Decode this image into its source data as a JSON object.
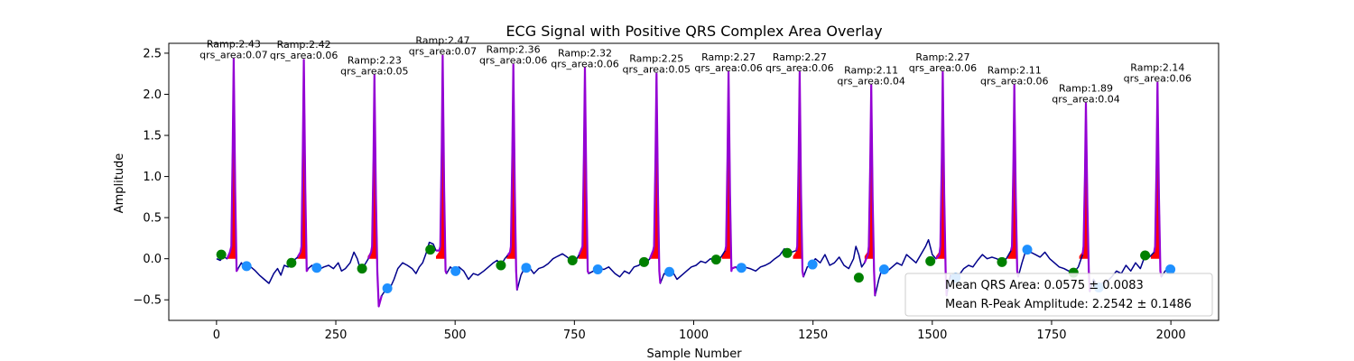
{
  "chart_data": {
    "type": "line",
    "title": "ECG Signal with Positive QRS Complex Area Overlay",
    "xlabel": "Sample Number",
    "ylabel": "Amplitude",
    "xlim": [
      -100,
      2100
    ],
    "ylim": [
      -0.75,
      2.62
    ],
    "xticks": [
      0,
      250,
      500,
      750,
      1000,
      1250,
      1500,
      1750,
      2000
    ],
    "yticks": [
      -0.5,
      0.0,
      0.5,
      1.0,
      1.5,
      2.0,
      2.5
    ],
    "xtick_labels": [
      "0",
      "250",
      "500",
      "750",
      "1000",
      "1250",
      "1500",
      "1750",
      "2000"
    ],
    "ytick_labels": [
      "−0.5",
      "0.0",
      "0.5",
      "1.0",
      "1.5",
      "2.0",
      "2.5"
    ],
    "grid": false,
    "colors": {
      "signal": "#00008b",
      "qrs_segment": "#9400d3",
      "qrs_area": "#ff0000",
      "onset_marker": "#008000",
      "offset_marker": "#1e90ff"
    },
    "beats": [
      {
        "r_x": 36,
        "r_amp": 2.43,
        "qrs_area": 0.07,
        "onset_x": 10,
        "onset_y": 0.05,
        "offset_x": 63,
        "offset_y": -0.09
      },
      {
        "r_x": 183,
        "r_amp": 2.42,
        "qrs_area": 0.06,
        "onset_x": 157,
        "onset_y": -0.05,
        "offset_x": 210,
        "offset_y": -0.11
      },
      {
        "r_x": 331,
        "r_amp": 2.23,
        "qrs_area": 0.05,
        "onset_x": 305,
        "onset_y": -0.12,
        "offset_x": 358,
        "offset_y": -0.36
      },
      {
        "r_x": 474,
        "r_amp": 2.47,
        "qrs_area": 0.07,
        "onset_x": 448,
        "onset_y": 0.11,
        "offset_x": 501,
        "offset_y": -0.15
      },
      {
        "r_x": 622,
        "r_amp": 2.36,
        "qrs_area": 0.06,
        "onset_x": 596,
        "onset_y": -0.08,
        "offset_x": 649,
        "offset_y": -0.11
      },
      {
        "r_x": 772,
        "r_amp": 2.32,
        "qrs_area": 0.06,
        "onset_x": 746,
        "onset_y": -0.02,
        "offset_x": 799,
        "offset_y": -0.13
      },
      {
        "r_x": 922,
        "r_amp": 2.25,
        "qrs_area": 0.05,
        "onset_x": 896,
        "onset_y": -0.04,
        "offset_x": 949,
        "offset_y": -0.16
      },
      {
        "r_x": 1073,
        "r_amp": 2.27,
        "qrs_area": 0.06,
        "onset_x": 1047,
        "onset_y": -0.01,
        "offset_x": 1100,
        "offset_y": -0.11
      },
      {
        "r_x": 1222,
        "r_amp": 2.27,
        "qrs_area": 0.06,
        "onset_x": 1196,
        "onset_y": 0.07,
        "offset_x": 1249,
        "offset_y": -0.07
      },
      {
        "r_x": 1372,
        "r_amp": 2.11,
        "qrs_area": 0.04,
        "onset_x": 1346,
        "onset_y": -0.23,
        "offset_x": 1399,
        "offset_y": -0.13
      },
      {
        "r_x": 1522,
        "r_amp": 2.27,
        "qrs_area": 0.06,
        "onset_x": 1496,
        "onset_y": -0.03,
        "offset_x": 1549,
        "offset_y": -0.23
      },
      {
        "r_x": 1672,
        "r_amp": 2.11,
        "qrs_area": 0.06,
        "onset_x": 1646,
        "onset_y": -0.04,
        "offset_x": 1699,
        "offset_y": 0.11
      },
      {
        "r_x": 1822,
        "r_amp": 1.89,
        "qrs_area": 0.04,
        "onset_x": 1796,
        "onset_y": -0.17,
        "offset_x": 1849,
        "offset_y": -0.35
      },
      {
        "r_x": 1972,
        "r_amp": 2.14,
        "qrs_area": 0.06,
        "onset_x": 1946,
        "onset_y": 0.04,
        "offset_x": 1999,
        "offset_y": -0.13
      }
    ],
    "baseline_points": [
      [
        0,
        0.0
      ],
      [
        8,
        -0.02
      ],
      [
        14,
        0.03
      ],
      [
        22,
        0.0
      ],
      [
        28,
        0.08
      ],
      [
        45,
        -0.12
      ],
      [
        52,
        -0.05
      ],
      [
        58,
        -0.1
      ],
      [
        70,
        -0.09
      ],
      [
        80,
        -0.14
      ],
      [
        90,
        -0.2
      ],
      [
        100,
        -0.25
      ],
      [
        110,
        -0.3
      ],
      [
        120,
        -0.18
      ],
      [
        128,
        -0.12
      ],
      [
        135,
        -0.2
      ],
      [
        142,
        -0.08
      ],
      [
        150,
        -0.1
      ],
      [
        160,
        -0.03
      ],
      [
        170,
        0.02
      ],
      [
        176,
        0.08
      ],
      [
        192,
        -0.12
      ],
      [
        200,
        -0.08
      ],
      [
        215,
        -0.13
      ],
      [
        225,
        -0.1
      ],
      [
        235,
        -0.08
      ],
      [
        245,
        -0.12
      ],
      [
        255,
        -0.05
      ],
      [
        262,
        -0.15
      ],
      [
        270,
        -0.12
      ],
      [
        280,
        -0.05
      ],
      [
        288,
        0.08
      ],
      [
        295,
        0.0
      ],
      [
        300,
        -0.1
      ],
      [
        310,
        -0.08
      ],
      [
        318,
        0.0
      ],
      [
        324,
        0.08
      ],
      [
        340,
        -0.58
      ],
      [
        346,
        -0.45
      ],
      [
        352,
        -0.4
      ],
      [
        362,
        -0.38
      ],
      [
        372,
        -0.25
      ],
      [
        380,
        -0.12
      ],
      [
        390,
        -0.05
      ],
      [
        400,
        -0.08
      ],
      [
        410,
        -0.12
      ],
      [
        418,
        -0.18
      ],
      [
        425,
        -0.1
      ],
      [
        432,
        -0.05
      ],
      [
        440,
        0.08
      ],
      [
        446,
        0.2
      ],
      [
        454,
        0.18
      ],
      [
        460,
        0.1
      ],
      [
        467,
        0.1
      ],
      [
        482,
        -0.18
      ],
      [
        490,
        -0.1
      ],
      [
        498,
        -0.15
      ],
      [
        508,
        -0.1
      ],
      [
        518,
        -0.15
      ],
      [
        528,
        -0.25
      ],
      [
        538,
        -0.18
      ],
      [
        548,
        -0.2
      ],
      [
        560,
        -0.15
      ],
      [
        570,
        -0.1
      ],
      [
        580,
        -0.05
      ],
      [
        588,
        -0.02
      ],
      [
        596,
        -0.08
      ],
      [
        604,
        0.0
      ],
      [
        610,
        0.04
      ],
      [
        615,
        0.08
      ],
      [
        630,
        -0.38
      ],
      [
        638,
        -0.2
      ],
      [
        645,
        -0.12
      ],
      [
        655,
        -0.1
      ],
      [
        665,
        -0.18
      ],
      [
        675,
        -0.12
      ],
      [
        685,
        -0.1
      ],
      [
        695,
        -0.06
      ],
      [
        705,
        0.0
      ],
      [
        715,
        0.03
      ],
      [
        725,
        0.06
      ],
      [
        735,
        0.02
      ],
      [
        745,
        -0.03
      ],
      [
        755,
        0.0
      ],
      [
        760,
        0.05
      ],
      [
        765,
        0.12
      ],
      [
        780,
        -0.18
      ],
      [
        790,
        -0.15
      ],
      [
        800,
        -0.12
      ],
      [
        812,
        -0.13
      ],
      [
        822,
        -0.1
      ],
      [
        835,
        -0.18
      ],
      [
        845,
        -0.22
      ],
      [
        855,
        -0.15
      ],
      [
        865,
        -0.18
      ],
      [
        875,
        -0.1
      ],
      [
        885,
        -0.08
      ],
      [
        893,
        -0.03
      ],
      [
        900,
        -0.05
      ],
      [
        908,
        0.0
      ],
      [
        915,
        0.1
      ],
      [
        930,
        -0.3
      ],
      [
        938,
        -0.18
      ],
      [
        945,
        -0.2
      ],
      [
        955,
        -0.15
      ],
      [
        965,
        -0.25
      ],
      [
        975,
        -0.2
      ],
      [
        985,
        -0.15
      ],
      [
        995,
        -0.1
      ],
      [
        1005,
        -0.08
      ],
      [
        1015,
        -0.03
      ],
      [
        1025,
        -0.05
      ],
      [
        1035,
        0.0
      ],
      [
        1045,
        -0.02
      ],
      [
        1055,
        0.0
      ],
      [
        1066,
        0.1
      ],
      [
        1080,
        -0.12
      ],
      [
        1088,
        -0.1
      ],
      [
        1096,
        -0.15
      ],
      [
        1106,
        -0.1
      ],
      [
        1118,
        -0.12
      ],
      [
        1130,
        -0.15
      ],
      [
        1140,
        -0.1
      ],
      [
        1150,
        -0.08
      ],
      [
        1160,
        -0.05
      ],
      [
        1170,
        0.0
      ],
      [
        1180,
        0.04
      ],
      [
        1190,
        0.12
      ],
      [
        1196,
        0.07
      ],
      [
        1205,
        0.08
      ],
      [
        1215,
        0.1
      ],
      [
        1230,
        -0.22
      ],
      [
        1238,
        -0.1
      ],
      [
        1245,
        -0.08
      ],
      [
        1255,
        0.0
      ],
      [
        1265,
        -0.05
      ],
      [
        1275,
        0.05
      ],
      [
        1285,
        -0.08
      ],
      [
        1295,
        -0.05
      ],
      [
        1305,
        0.02
      ],
      [
        1315,
        -0.08
      ],
      [
        1325,
        -0.12
      ],
      [
        1335,
        0.0
      ],
      [
        1340,
        0.15
      ],
      [
        1346,
        0.05
      ],
      [
        1352,
        -0.1
      ],
      [
        1358,
        -0.05
      ],
      [
        1365,
        0.05
      ],
      [
        1380,
        -0.45
      ],
      [
        1388,
        -0.25
      ],
      [
        1396,
        -0.1
      ],
      [
        1406,
        -0.15
      ],
      [
        1416,
        -0.1
      ],
      [
        1426,
        -0.05
      ],
      [
        1436,
        -0.08
      ],
      [
        1446,
        0.05
      ],
      [
        1456,
        0.0
      ],
      [
        1466,
        -0.05
      ],
      [
        1476,
        0.05
      ],
      [
        1486,
        0.15
      ],
      [
        1492,
        0.23
      ],
      [
        1500,
        0.05
      ],
      [
        1508,
        0.0
      ],
      [
        1515,
        0.05
      ],
      [
        1530,
        -0.45
      ],
      [
        1538,
        -0.2
      ],
      [
        1548,
        -0.25
      ],
      [
        1556,
        -0.2
      ],
      [
        1566,
        -0.12
      ],
      [
        1576,
        -0.08
      ],
      [
        1585,
        -0.1
      ],
      [
        1595,
        -0.02
      ],
      [
        1605,
        0.05
      ],
      [
        1615,
        0.0
      ],
      [
        1625,
        0.02
      ],
      [
        1635,
        0.0
      ],
      [
        1645,
        -0.03
      ],
      [
        1655,
        0.0
      ],
      [
        1665,
        0.1
      ],
      [
        1680,
        -0.22
      ],
      [
        1688,
        -0.05
      ],
      [
        1696,
        0.1
      ],
      [
        1706,
        0.08
      ],
      [
        1716,
        0.05
      ],
      [
        1726,
        0.02
      ],
      [
        1736,
        0.08
      ],
      [
        1746,
        0.0
      ],
      [
        1756,
        -0.05
      ],
      [
        1766,
        -0.1
      ],
      [
        1776,
        -0.12
      ],
      [
        1786,
        -0.15
      ],
      [
        1796,
        -0.17
      ],
      [
        1806,
        -0.1
      ],
      [
        1815,
        0.05
      ],
      [
        1830,
        -0.4
      ],
      [
        1838,
        -0.25
      ],
      [
        1848,
        -0.35
      ],
      [
        1856,
        -0.3
      ],
      [
        1866,
        -0.28
      ],
      [
        1876,
        -0.22
      ],
      [
        1886,
        -0.15
      ],
      [
        1896,
        -0.18
      ],
      [
        1906,
        -0.08
      ],
      [
        1916,
        -0.15
      ],
      [
        1926,
        -0.05
      ],
      [
        1936,
        -0.12
      ],
      [
        1946,
        0.04
      ],
      [
        1955,
        0.02
      ],
      [
        1965,
        0.08
      ],
      [
        1980,
        -0.22
      ],
      [
        1988,
        -0.15
      ],
      [
        1996,
        -0.12
      ],
      [
        2000,
        -0.13
      ]
    ],
    "legend": {
      "placement": "lower right",
      "entries": [
        "Mean QRS Area: 0.0575 ± 0.0083",
        "Mean R-Peak Amplitude: 2.2542 ± 0.1486"
      ]
    },
    "mean_qrs_area": "0.0575 ± 0.0083",
    "mean_r_peak_amplitude": "2.2542 ± 0.1486"
  }
}
